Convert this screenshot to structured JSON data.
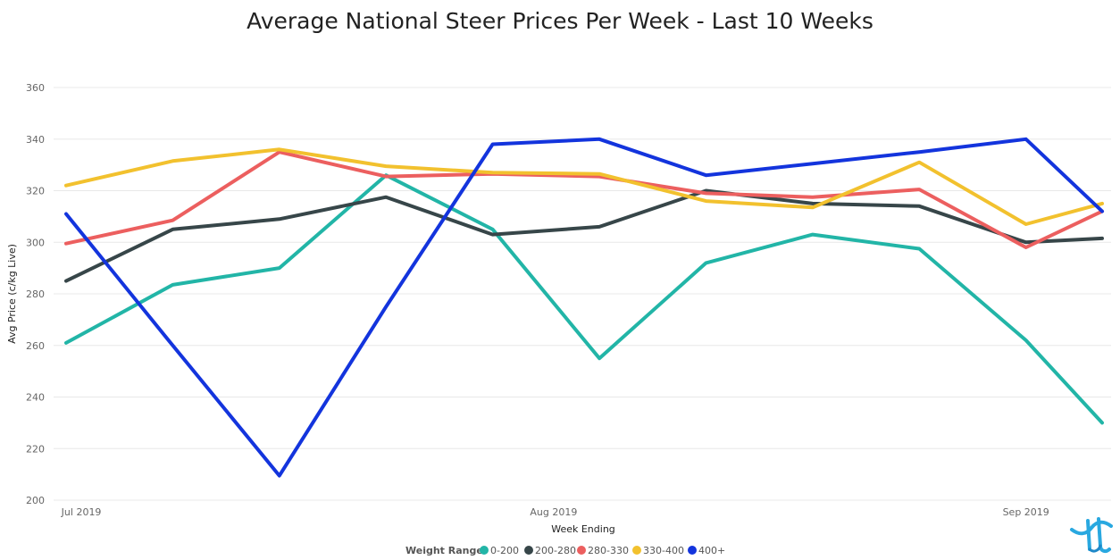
{
  "chart_data": {
    "type": "line",
    "title": "Average National Steer Prices Per Week - Last 10 Weeks",
    "xlabel": "Week Ending",
    "ylabel": "Avg Price (c/kg Live)",
    "ylim": [
      200,
      360
    ],
    "yticks": [
      200,
      220,
      240,
      260,
      280,
      300,
      320,
      340,
      360
    ],
    "x": [
      "2019-06-30",
      "2019-07-07",
      "2019-07-14",
      "2019-07-21",
      "2019-07-28",
      "2019-08-04",
      "2019-08-11",
      "2019-08-18",
      "2019-08-25",
      "2019-09-01",
      "2019-09-06"
    ],
    "xticks": [
      {
        "label": "Jul 2019",
        "date": "2019-07-01"
      },
      {
        "label": "Aug 2019",
        "date": "2019-08-01"
      },
      {
        "label": "Sep 2019",
        "date": "2019-09-01"
      }
    ],
    "grid": true,
    "legend_title": "Weight Range",
    "legend_position": "bottom",
    "series": [
      {
        "name": "0-200",
        "color": "#22b5a7",
        "values": [
          261,
          283.5,
          290,
          326,
          305,
          255,
          292,
          303,
          297.5,
          262,
          230
        ]
      },
      {
        "name": "200-280",
        "color": "#374649",
        "values": [
          285,
          305,
          309,
          317.5,
          303,
          306,
          320,
          315,
          314,
          300,
          301.5
        ]
      },
      {
        "name": "280-330",
        "color": "#ec5f5f",
        "values": [
          299.5,
          308.5,
          335,
          325.5,
          326.5,
          325.5,
          319,
          317.5,
          320.5,
          298,
          312
        ]
      },
      {
        "name": "330-400",
        "color": "#f2c12e",
        "values": [
          322,
          331.5,
          336,
          329.5,
          327,
          326.5,
          316,
          313.5,
          331,
          307,
          315
        ]
      },
      {
        "name": "400+",
        "color": "#1334dd",
        "values": [
          311,
          260,
          209.5,
          275,
          338,
          340,
          326,
          330.5,
          335,
          340,
          312
        ]
      }
    ]
  }
}
